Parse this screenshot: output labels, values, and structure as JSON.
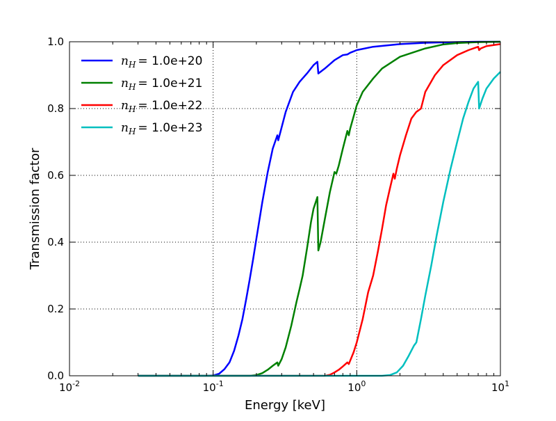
{
  "chart_data": {
    "type": "line",
    "xlabel": "Energy [keV]",
    "ylabel": "Transmission factor",
    "xscale": "log",
    "xlim": [
      0.01,
      10
    ],
    "ylim": [
      0.0,
      1.0
    ],
    "grid": true,
    "legend_position": "top-left",
    "x_ticks": [
      {
        "value": 0.01,
        "base": "10",
        "exp": "-2"
      },
      {
        "value": 0.1,
        "base": "10",
        "exp": "-1"
      },
      {
        "value": 1,
        "base": "10",
        "exp": "0"
      },
      {
        "value": 10,
        "base": "10",
        "exp": "1"
      }
    ],
    "y_ticks": [
      {
        "value": 0.0,
        "label": "0.0"
      },
      {
        "value": 0.2,
        "label": "0.2"
      },
      {
        "value": 0.4,
        "label": "0.4"
      },
      {
        "value": 0.6,
        "label": "0.6"
      },
      {
        "value": 0.8,
        "label": "0.8"
      },
      {
        "value": 1.0,
        "label": "1.0"
      }
    ],
    "series": [
      {
        "name": "n_H = 1.0e+20",
        "legend_label": "1.0e+20",
        "color": "#0000ff",
        "x": [
          0.03,
          0.09,
          0.1,
          0.11,
          0.12,
          0.13,
          0.14,
          0.15,
          0.16,
          0.17,
          0.18,
          0.19,
          0.2,
          0.22,
          0.24,
          0.26,
          0.28,
          0.284,
          0.29,
          0.32,
          0.36,
          0.4,
          0.45,
          0.5,
          0.532,
          0.54,
          0.6,
          0.7,
          0.8,
          0.86,
          0.9,
          1.0,
          1.3,
          2.0,
          3.0,
          5.0,
          7.0,
          10.0
        ],
        "y": [
          0.0,
          0.0,
          0.001,
          0.006,
          0.02,
          0.04,
          0.075,
          0.12,
          0.17,
          0.23,
          0.29,
          0.35,
          0.41,
          0.52,
          0.61,
          0.68,
          0.72,
          0.705,
          0.72,
          0.79,
          0.85,
          0.88,
          0.905,
          0.93,
          0.94,
          0.905,
          0.92,
          0.945,
          0.96,
          0.962,
          0.967,
          0.975,
          0.985,
          0.993,
          0.997,
          0.999,
          1.0,
          1.0
        ]
      },
      {
        "name": "n_H = 1.0e+21",
        "legend_label": "1.0e+21",
        "color": "#008000",
        "x": [
          0.03,
          0.18,
          0.2,
          0.22,
          0.24,
          0.26,
          0.28,
          0.284,
          0.3,
          0.32,
          0.35,
          0.38,
          0.4,
          0.42,
          0.45,
          0.48,
          0.5,
          0.532,
          0.54,
          0.56,
          0.6,
          0.65,
          0.7,
          0.72,
          0.75,
          0.8,
          0.86,
          0.88,
          0.9,
          1.0,
          1.1,
          1.3,
          1.5,
          2.0,
          3.0,
          4.0,
          5.0,
          7.0,
          10.0
        ],
        "y": [
          0.0,
          0.0,
          0.002,
          0.008,
          0.018,
          0.03,
          0.04,
          0.03,
          0.05,
          0.085,
          0.15,
          0.22,
          0.26,
          0.3,
          0.38,
          0.46,
          0.5,
          0.535,
          0.375,
          0.4,
          0.47,
          0.55,
          0.61,
          0.605,
          0.63,
          0.68,
          0.733,
          0.72,
          0.74,
          0.81,
          0.85,
          0.89,
          0.92,
          0.955,
          0.98,
          0.992,
          0.996,
          0.999,
          1.0
        ]
      },
      {
        "name": "n_H = 1.0e+22",
        "legend_label": "1.0e+22",
        "color": "#ff0000",
        "x": [
          0.03,
          0.6,
          0.65,
          0.7,
          0.75,
          0.8,
          0.86,
          0.88,
          0.95,
          1.0,
          1.1,
          1.2,
          1.3,
          1.4,
          1.5,
          1.6,
          1.7,
          1.8,
          1.84,
          1.9,
          2.0,
          2.2,
          2.4,
          2.6,
          2.8,
          3.0,
          3.5,
          4.0,
          5.0,
          6.0,
          7.0,
          7.11,
          7.3,
          8.0,
          10.0
        ],
        "y": [
          0.0,
          0.0,
          0.003,
          0.01,
          0.018,
          0.028,
          0.04,
          0.035,
          0.07,
          0.1,
          0.17,
          0.25,
          0.3,
          0.37,
          0.44,
          0.51,
          0.56,
          0.605,
          0.59,
          0.62,
          0.66,
          0.72,
          0.77,
          0.79,
          0.8,
          0.85,
          0.9,
          0.93,
          0.96,
          0.975,
          0.985,
          0.975,
          0.98,
          0.987,
          0.993
        ]
      },
      {
        "name": "n_H = 1.0e+23",
        "legend_label": "1.0e+23",
        "color": "#00bfbf",
        "x": [
          0.03,
          1.5,
          1.7,
          1.9,
          2.1,
          2.3,
          2.5,
          2.6,
          2.8,
          3.0,
          3.3,
          3.6,
          4.0,
          4.5,
          5.0,
          5.5,
          6.0,
          6.5,
          7.0,
          7.11,
          7.5,
          8.0,
          9.0,
          10.0
        ],
        "y": [
          0.0,
          0.0,
          0.002,
          0.01,
          0.03,
          0.06,
          0.09,
          0.1,
          0.17,
          0.24,
          0.33,
          0.42,
          0.52,
          0.62,
          0.7,
          0.77,
          0.82,
          0.86,
          0.88,
          0.8,
          0.83,
          0.86,
          0.89,
          0.91
        ]
      }
    ]
  }
}
